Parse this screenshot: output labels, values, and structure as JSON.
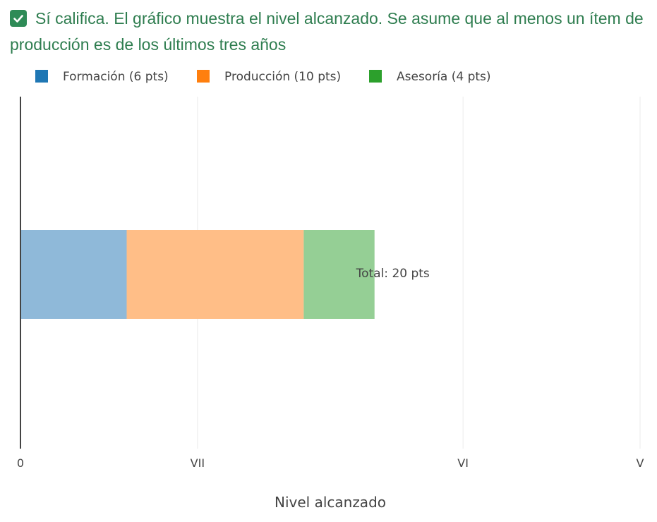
{
  "status": {
    "icon": "checkbox-checked-icon",
    "text": "Sí califica. El gráfico muestra el nivel alcanzado. Se asume que al menos un ítem de producción es de los últimos tres años",
    "color": "#2e7d4f"
  },
  "chart_data": {
    "type": "bar",
    "orientation": "horizontal",
    "stacked": true,
    "xlabel": "Nivel alcanzado",
    "xlim": [
      0,
      35
    ],
    "ticks": [
      {
        "value": 0,
        "label": "0"
      },
      {
        "value": 10,
        "label": "VII"
      },
      {
        "value": 25,
        "label": "VI"
      },
      {
        "value": 35,
        "label": "V"
      }
    ],
    "grid": true,
    "legend_position": "top",
    "series": [
      {
        "name": "Formación (6 pts)",
        "value": 6,
        "color": "#1f77b4",
        "fill": "#8fb9d9"
      },
      {
        "name": "Producción (10 pts)",
        "value": 10,
        "color": "#ff7f0e",
        "fill": "#ffbe87"
      },
      {
        "name": "Asesoría (4 pts)",
        "value": 4,
        "color": "#2ca02c",
        "fill": "#95cf95"
      }
    ],
    "total_annotation": {
      "value": 20,
      "text": "Total: 20 pts"
    }
  }
}
